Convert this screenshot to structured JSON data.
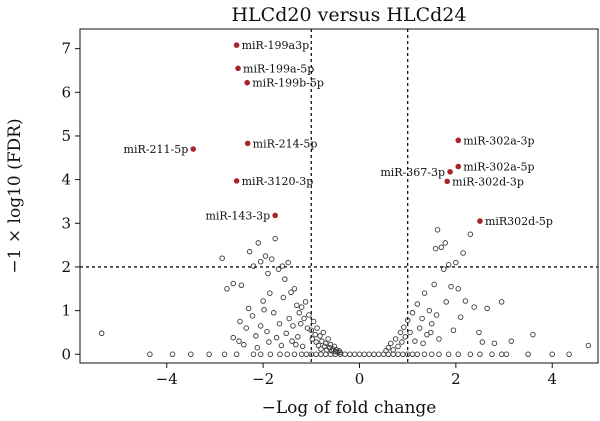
{
  "chart_data": {
    "type": "scatter",
    "title": "HLCd20 versus HLCd24",
    "xlabel": "−Log of fold change",
    "ylabel": "−1 × log10 (FDR)",
    "xlim": [
      -5.8,
      4.95
    ],
    "ylim": [
      -0.2,
      7.45
    ],
    "xticks": [
      -4,
      -2,
      0,
      2,
      4
    ],
    "xtick_labels": [
      "−4",
      "−2",
      "0",
      "2",
      "4"
    ],
    "yticks": [
      0,
      1,
      2,
      3,
      4,
      5,
      6,
      7
    ],
    "ytick_labels": [
      "0",
      "1",
      "2",
      "3",
      "4",
      "5",
      "6",
      "7"
    ],
    "thresholds": {
      "x": [
        -1,
        1
      ],
      "y": 2
    },
    "grid": false,
    "colors": {
      "significant": "#a8262b",
      "background": "#3a3a3a"
    },
    "significant_points": [
      {
        "label": "miR-199a3p",
        "x": -2.55,
        "y": 7.08,
        "label_side": "right"
      },
      {
        "label": "miR-199a-5p",
        "x": -2.52,
        "y": 6.55,
        "label_side": "right"
      },
      {
        "label": "miR-199b-5p",
        "x": -2.33,
        "y": 6.22,
        "label_side": "right"
      },
      {
        "label": "miR-214-5p",
        "x": -2.32,
        "y": 4.83,
        "label_side": "right"
      },
      {
        "label": "miR-211-5p",
        "x": -3.45,
        "y": 4.7,
        "label_side": "left"
      },
      {
        "label": "miR-3120-3p",
        "x": -2.55,
        "y": 3.97,
        "label_side": "right"
      },
      {
        "label": "miR-143-3p",
        "x": -1.75,
        "y": 3.18,
        "label_side": "left"
      },
      {
        "label": "miR-302a-3p",
        "x": 2.05,
        "y": 4.9,
        "label_side": "right"
      },
      {
        "label": "miR-302a-5p",
        "x": 2.05,
        "y": 4.3,
        "label_side": "right"
      },
      {
        "label": "miR-367-3p",
        "x": 1.88,
        "y": 4.18,
        "label_side": "left"
      },
      {
        "label": "miR-302d-3p",
        "x": 1.82,
        "y": 3.96,
        "label_side": "right"
      },
      {
        "label": "miR302d-5p",
        "x": 2.5,
        "y": 3.05,
        "label_side": "right"
      }
    ],
    "background_points": [
      [
        -5.35,
        0.48
      ],
      [
        -4.35,
        0.0
      ],
      [
        -3.88,
        0.0
      ],
      [
        -3.5,
        0.0
      ],
      [
        -3.12,
        0.0
      ],
      [
        -2.8,
        0.0
      ],
      [
        -2.55,
        0.0
      ],
      [
        -2.5,
        0.3
      ],
      [
        -2.2,
        0.0
      ],
      [
        -2.05,
        0.0
      ],
      [
        -1.85,
        0.0
      ],
      [
        -1.65,
        0.0
      ],
      [
        -1.5,
        0.0
      ],
      [
        -1.35,
        0.0
      ],
      [
        -1.2,
        0.0
      ],
      [
        -1.1,
        0.0
      ],
      [
        -1.0,
        0.0
      ],
      [
        -0.9,
        0.0
      ],
      [
        -0.8,
        0.0
      ],
      [
        -0.7,
        0.0
      ],
      [
        -0.6,
        0.0
      ],
      [
        -0.5,
        0.0
      ],
      [
        -0.4,
        0.0
      ],
      [
        -0.3,
        0.0
      ],
      [
        -0.2,
        0.0
      ],
      [
        -0.1,
        0.0
      ],
      [
        0.0,
        0.0
      ],
      [
        0.1,
        0.0
      ],
      [
        0.2,
        0.0
      ],
      [
        0.3,
        0.0
      ],
      [
        0.4,
        0.0
      ],
      [
        0.5,
        0.0
      ],
      [
        0.6,
        0.0
      ],
      [
        0.7,
        0.0
      ],
      [
        0.8,
        0.0
      ],
      [
        0.9,
        0.0
      ],
      [
        1.0,
        0.0
      ],
      [
        1.1,
        0.0
      ],
      [
        1.2,
        0.0
      ],
      [
        1.35,
        0.0
      ],
      [
        1.5,
        0.0
      ],
      [
        1.65,
        0.0
      ],
      [
        1.85,
        0.0
      ],
      [
        2.05,
        0.0
      ],
      [
        2.3,
        0.0
      ],
      [
        2.5,
        0.0
      ],
      [
        2.75,
        0.0
      ],
      [
        2.95,
        0.0
      ],
      [
        3.05,
        0.0
      ],
      [
        3.5,
        0.0
      ],
      [
        4.0,
        0.0
      ],
      [
        4.35,
        0.0
      ],
      [
        4.75,
        0.2
      ],
      [
        -2.85,
        2.2
      ],
      [
        -2.62,
        1.62
      ],
      [
        -2.45,
        1.58
      ],
      [
        -2.28,
        2.35
      ],
      [
        -2.2,
        2.02
      ],
      [
        -2.1,
        2.55
      ],
      [
        -2.05,
        2.12
      ],
      [
        -1.95,
        2.25
      ],
      [
        -1.9,
        1.85
      ],
      [
        -1.82,
        2.18
      ],
      [
        -1.75,
        2.65
      ],
      [
        -1.68,
        1.95
      ],
      [
        -1.6,
        2.02
      ],
      [
        -1.55,
        1.72
      ],
      [
        -1.48,
        2.1
      ],
      [
        -1.42,
        1.42
      ],
      [
        -1.35,
        1.5
      ],
      [
        -1.3,
        1.12
      ],
      [
        -1.25,
        0.95
      ],
      [
        -1.2,
        1.08
      ],
      [
        -1.15,
        0.82
      ],
      [
        -1.12,
        1.2
      ],
      [
        -1.08,
        0.6
      ],
      [
        -1.05,
        0.9
      ],
      [
        -1.0,
        0.55
      ],
      [
        -0.98,
        0.35
      ],
      [
        -0.95,
        0.75
      ],
      [
        -0.92,
        0.45
      ],
      [
        -0.9,
        0.28
      ],
      [
        -0.88,
        0.6
      ],
      [
        -0.85,
        0.2
      ],
      [
        -0.82,
        0.42
      ],
      [
        -0.8,
        0.12
      ],
      [
        -0.78,
        0.3
      ],
      [
        -0.75,
        0.5
      ],
      [
        -0.72,
        0.18
      ],
      [
        -0.7,
        0.25
      ],
      [
        -0.68,
        0.1
      ],
      [
        -0.65,
        0.35
      ],
      [
        -0.62,
        0.15
      ],
      [
        -0.6,
        0.22
      ],
      [
        -0.58,
        0.08
      ],
      [
        -0.55,
        0.12
      ],
      [
        -0.52,
        0.18
      ],
      [
        -0.5,
        0.06
      ],
      [
        -0.48,
        0.1
      ],
      [
        -0.45,
        0.05
      ],
      [
        -0.42,
        0.08
      ],
      [
        -0.4,
        0.04
      ],
      [
        -2.48,
        0.75
      ],
      [
        -2.35,
        0.6
      ],
      [
        -2.22,
        0.88
      ],
      [
        -2.15,
        0.42
      ],
      [
        -2.05,
        0.65
      ],
      [
        -1.98,
        1.02
      ],
      [
        -1.92,
        0.52
      ],
      [
        -1.88,
        0.28
      ],
      [
        -1.78,
        0.95
      ],
      [
        -1.72,
        0.38
      ],
      [
        -1.66,
        0.7
      ],
      [
        -1.62,
        0.2
      ],
      [
        -1.58,
        1.3
      ],
      [
        -1.52,
        0.48
      ],
      [
        -1.46,
        0.82
      ],
      [
        -1.4,
        0.3
      ],
      [
        -1.38,
        0.65
      ],
      [
        -1.32,
        0.22
      ],
      [
        -1.28,
        0.4
      ],
      [
        -1.22,
        0.7
      ],
      [
        -1.18,
        0.18
      ],
      [
        -2.75,
        1.5
      ],
      [
        -2.62,
        0.38
      ],
      [
        -2.4,
        0.22
      ],
      [
        -2.3,
        1.05
      ],
      [
        -2.12,
        0.15
      ],
      [
        -2.0,
        1.22
      ],
      [
        -1.86,
        1.4
      ],
      [
        0.55,
        0.08
      ],
      [
        0.6,
        0.15
      ],
      [
        0.65,
        0.25
      ],
      [
        0.7,
        0.1
      ],
      [
        0.75,
        0.35
      ],
      [
        0.8,
        0.18
      ],
      [
        0.85,
        0.5
      ],
      [
        0.88,
        0.28
      ],
      [
        0.92,
        0.62
      ],
      [
        0.95,
        0.4
      ],
      [
        1.0,
        0.78
      ],
      [
        1.05,
        0.5
      ],
      [
        1.1,
        0.95
      ],
      [
        1.15,
        0.3
      ],
      [
        1.2,
        1.15
      ],
      [
        1.25,
        0.6
      ],
      [
        1.3,
        0.82
      ],
      [
        1.35,
        1.4
      ],
      [
        1.4,
        0.45
      ],
      [
        1.45,
        1.0
      ],
      [
        1.5,
        0.7
      ],
      [
        1.55,
        1.6
      ],
      [
        1.6,
        0.9
      ],
      [
        1.65,
        0.35
      ],
      [
        1.7,
        2.45
      ],
      [
        1.75,
        1.95
      ],
      [
        1.8,
        1.2
      ],
      [
        1.85,
        2.05
      ],
      [
        1.9,
        1.55
      ],
      [
        1.95,
        0.55
      ],
      [
        2.0,
        2.1
      ],
      [
        2.05,
        1.5
      ],
      [
        2.1,
        0.85
      ],
      [
        2.15,
        2.32
      ],
      [
        2.2,
        1.22
      ],
      [
        2.3,
        2.75
      ],
      [
        2.38,
        1.08
      ],
      [
        2.48,
        0.5
      ],
      [
        2.55,
        0.28
      ],
      [
        2.65,
        1.05
      ],
      [
        2.8,
        0.25
      ],
      [
        2.95,
        1.2
      ],
      [
        3.15,
        0.3
      ],
      [
        3.6,
        0.45
      ],
      [
        1.62,
        2.85
      ],
      [
        1.58,
        2.42
      ],
      [
        1.78,
        2.55
      ],
      [
        1.48,
        0.5
      ],
      [
        1.32,
        0.25
      ]
    ]
  }
}
